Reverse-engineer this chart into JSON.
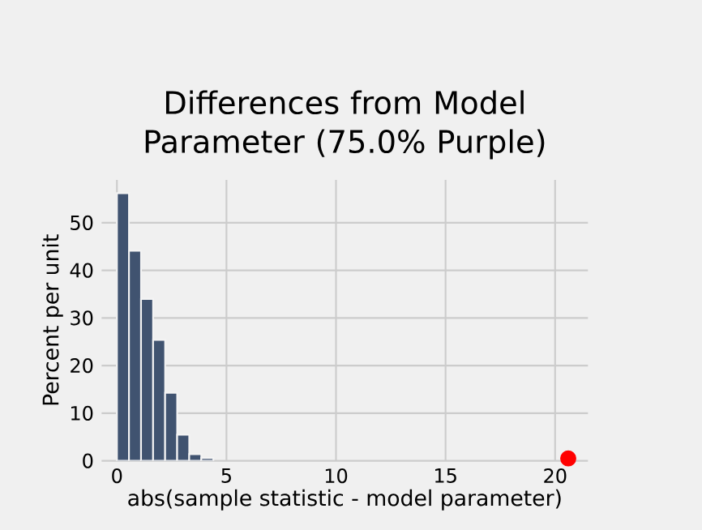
{
  "chart_data": {
    "type": "histogram",
    "title": "Differences from Model Parameter (75.0% Purple)",
    "xlabel": "abs(sample statistic - model parameter)",
    "ylabel": "Percent per unit",
    "bins": [
      0,
      0.55,
      1.1,
      1.65,
      2.2,
      2.75,
      3.3,
      3.85,
      4.4
    ],
    "values": [
      56.2,
      44.1,
      34.0,
      25.4,
      14.3,
      5.5,
      1.4,
      0.6
    ],
    "color": "#405370",
    "series": [
      {
        "type": "scatter",
        "x": [
          20.6
        ],
        "values": [
          0.5
        ],
        "color": "#ff0000"
      }
    ],
    "xlim": [
      -0.7,
      21.5
    ],
    "ylim": [
      0,
      59
    ],
    "xticks": [
      0,
      5,
      10,
      15,
      20
    ],
    "yticks": [
      0,
      10,
      20,
      30,
      40,
      50
    ],
    "grid": true
  }
}
